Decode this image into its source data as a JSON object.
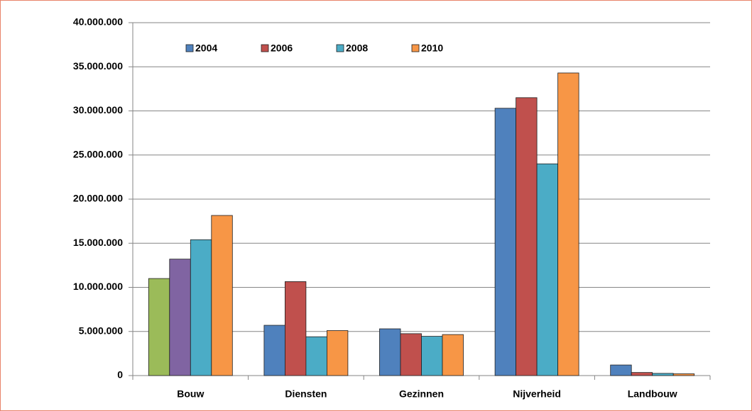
{
  "chart_data": {
    "type": "bar",
    "categories": [
      "Bouw",
      "Diensten",
      "Gezinnen",
      "Nijverheid",
      "Landbouw"
    ],
    "series": [
      {
        "name": "2004",
        "color": "#4f81bd",
        "colors": [
          "#9bbb59",
          "#4f81bd",
          "#4f81bd",
          "#4f81bd",
          "#4f81bd"
        ],
        "values": [
          11000000,
          5700000,
          5300000,
          30300000,
          1200000
        ]
      },
      {
        "name": "2006",
        "color": "#c0504d",
        "colors": [
          "#8064a2",
          "#c0504d",
          "#c0504d",
          "#c0504d",
          "#c0504d"
        ],
        "values": [
          13200000,
          10650000,
          4750000,
          31500000,
          350000
        ]
      },
      {
        "name": "2008",
        "color": "#4bacc6",
        "values": [
          15400000,
          4400000,
          4450000,
          24000000,
          250000
        ]
      },
      {
        "name": "2010",
        "color": "#f79646",
        "values": [
          18150000,
          5100000,
          4650000,
          34300000,
          200000
        ]
      }
    ],
    "ylim": [
      0,
      40000000
    ],
    "yticks": [
      0,
      {
        "value": 5000000,
        "label": "5.000.000"
      },
      {
        "value": 10000000,
        "label": "10.000.000"
      },
      {
        "value": 15000000,
        "label": "15.000.000"
      },
      {
        "value": 20000000,
        "label": "20.000.000"
      },
      {
        "value": 25000000,
        "label": "25.000.000"
      },
      {
        "value": 30000000,
        "label": "30.000.000"
      },
      {
        "value": 35000000,
        "label": "35.000.000"
      },
      {
        "value": 40000000,
        "label": "40.000.000"
      }
    ],
    "grid": true,
    "legend": "top"
  }
}
